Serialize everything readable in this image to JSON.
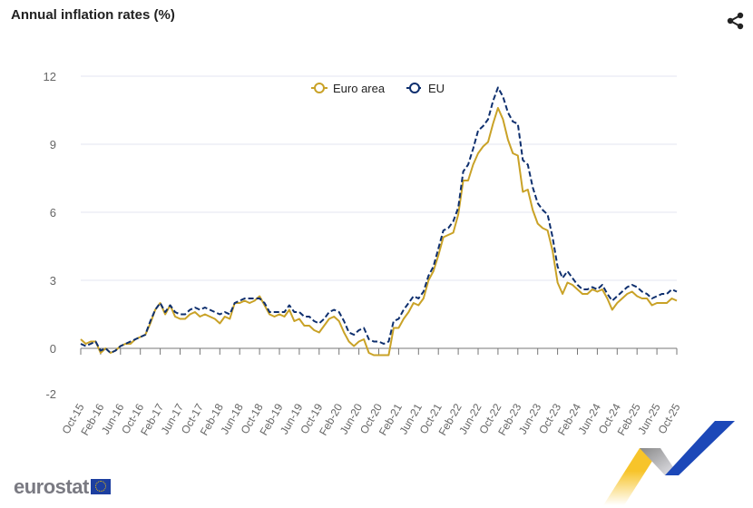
{
  "title": "Annual inflation rates (%)",
  "share_icon": "share-icon",
  "logo": "eurostat",
  "chart_data": {
    "type": "line",
    "title": "Annual inflation rates (%)",
    "xlabel": "",
    "ylabel": "",
    "ylim": [
      -2,
      12
    ],
    "yticks": [
      12,
      9,
      6,
      3,
      0,
      -2
    ],
    "grid": true,
    "legend_position": "top-center",
    "start": "Oct-15",
    "xtick_labels": [
      "Oct-15",
      "Feb-16",
      "Jun-16",
      "Oct-16",
      "Feb-17",
      "Jun-17",
      "Oct-17",
      "Feb-18",
      "Jun-18",
      "Oct-18",
      "Feb-19",
      "Jun-19",
      "Oct-19",
      "Feb-20",
      "Jun-20",
      "Oct-20",
      "Feb-21",
      "Jun-21",
      "Oct-21",
      "Feb-22",
      "Jun-22",
      "Oct-22",
      "Feb-23",
      "Jun-23",
      "Oct-23",
      "Feb-24",
      "Jun-24",
      "Oct-24",
      "Feb-25",
      "Jun-25",
      "Oct-25"
    ],
    "series": [
      {
        "name": "Euro area",
        "color": "#c9a227",
        "dashed": false,
        "values": [
          0.4,
          0.2,
          0.3,
          0.3,
          -0.2,
          0.0,
          -0.2,
          -0.1,
          0.1,
          0.2,
          0.2,
          0.4,
          0.5,
          0.6,
          1.1,
          1.7,
          2.0,
          1.5,
          1.9,
          1.4,
          1.3,
          1.3,
          1.5,
          1.6,
          1.4,
          1.5,
          1.4,
          1.3,
          1.1,
          1.4,
          1.3,
          2.0,
          2.0,
          2.1,
          2.0,
          2.1,
          2.3,
          1.9,
          1.5,
          1.4,
          1.5,
          1.4,
          1.7,
          1.2,
          1.3,
          1.0,
          1.0,
          0.8,
          0.7,
          1.0,
          1.3,
          1.4,
          1.2,
          0.7,
          0.3,
          0.1,
          0.3,
          0.4,
          -0.2,
          -0.3,
          -0.3,
          -0.3,
          -0.3,
          0.9,
          0.9,
          1.3,
          1.6,
          2.0,
          1.9,
          2.2,
          3.0,
          3.4,
          4.1,
          4.9,
          5.0,
          5.1,
          5.9,
          7.4,
          7.4,
          8.1,
          8.6,
          8.9,
          9.1,
          9.9,
          10.6,
          10.1,
          9.2,
          8.6,
          8.5,
          6.9,
          7.0,
          6.1,
          5.5,
          5.3,
          5.2,
          4.3,
          2.9,
          2.4,
          2.9,
          2.8,
          2.6,
          2.4,
          2.4,
          2.6,
          2.5,
          2.6,
          2.2,
          1.7,
          2.0,
          2.2,
          2.4,
          2.5,
          2.3,
          2.2,
          2.2,
          1.9,
          2.0,
          2.0,
          2.0,
          2.2,
          2.1
        ]
      },
      {
        "name": "EU",
        "color": "#0e2f6e",
        "dashed": true,
        "values": [
          0.2,
          0.1,
          0.2,
          0.3,
          -0.1,
          0.0,
          -0.2,
          -0.1,
          0.1,
          0.2,
          0.3,
          0.4,
          0.5,
          0.6,
          1.2,
          1.7,
          2.0,
          1.6,
          1.9,
          1.6,
          1.5,
          1.5,
          1.7,
          1.8,
          1.7,
          1.8,
          1.7,
          1.6,
          1.5,
          1.6,
          1.5,
          2.0,
          2.1,
          2.2,
          2.2,
          2.2,
          2.2,
          2.0,
          1.6,
          1.6,
          1.6,
          1.6,
          1.9,
          1.6,
          1.6,
          1.4,
          1.4,
          1.2,
          1.1,
          1.3,
          1.6,
          1.7,
          1.6,
          1.2,
          0.7,
          0.6,
          0.8,
          0.9,
          0.4,
          0.3,
          0.3,
          0.2,
          0.3,
          1.2,
          1.3,
          1.7,
          2.0,
          2.3,
          2.2,
          2.5,
          3.2,
          3.6,
          4.4,
          5.2,
          5.3,
          5.6,
          6.2,
          7.8,
          8.1,
          8.8,
          9.6,
          9.8,
          10.1,
          10.9,
          11.5,
          11.1,
          10.4,
          10.0,
          9.9,
          8.3,
          8.1,
          7.1,
          6.4,
          6.1,
          5.9,
          4.9,
          3.6,
          3.1,
          3.4,
          3.1,
          2.8,
          2.6,
          2.6,
          2.7,
          2.6,
          2.8,
          2.4,
          2.1,
          2.3,
          2.5,
          2.7,
          2.8,
          2.7,
          2.5,
          2.4,
          2.2,
          2.3,
          2.4,
          2.4,
          2.6,
          2.5
        ]
      }
    ]
  }
}
